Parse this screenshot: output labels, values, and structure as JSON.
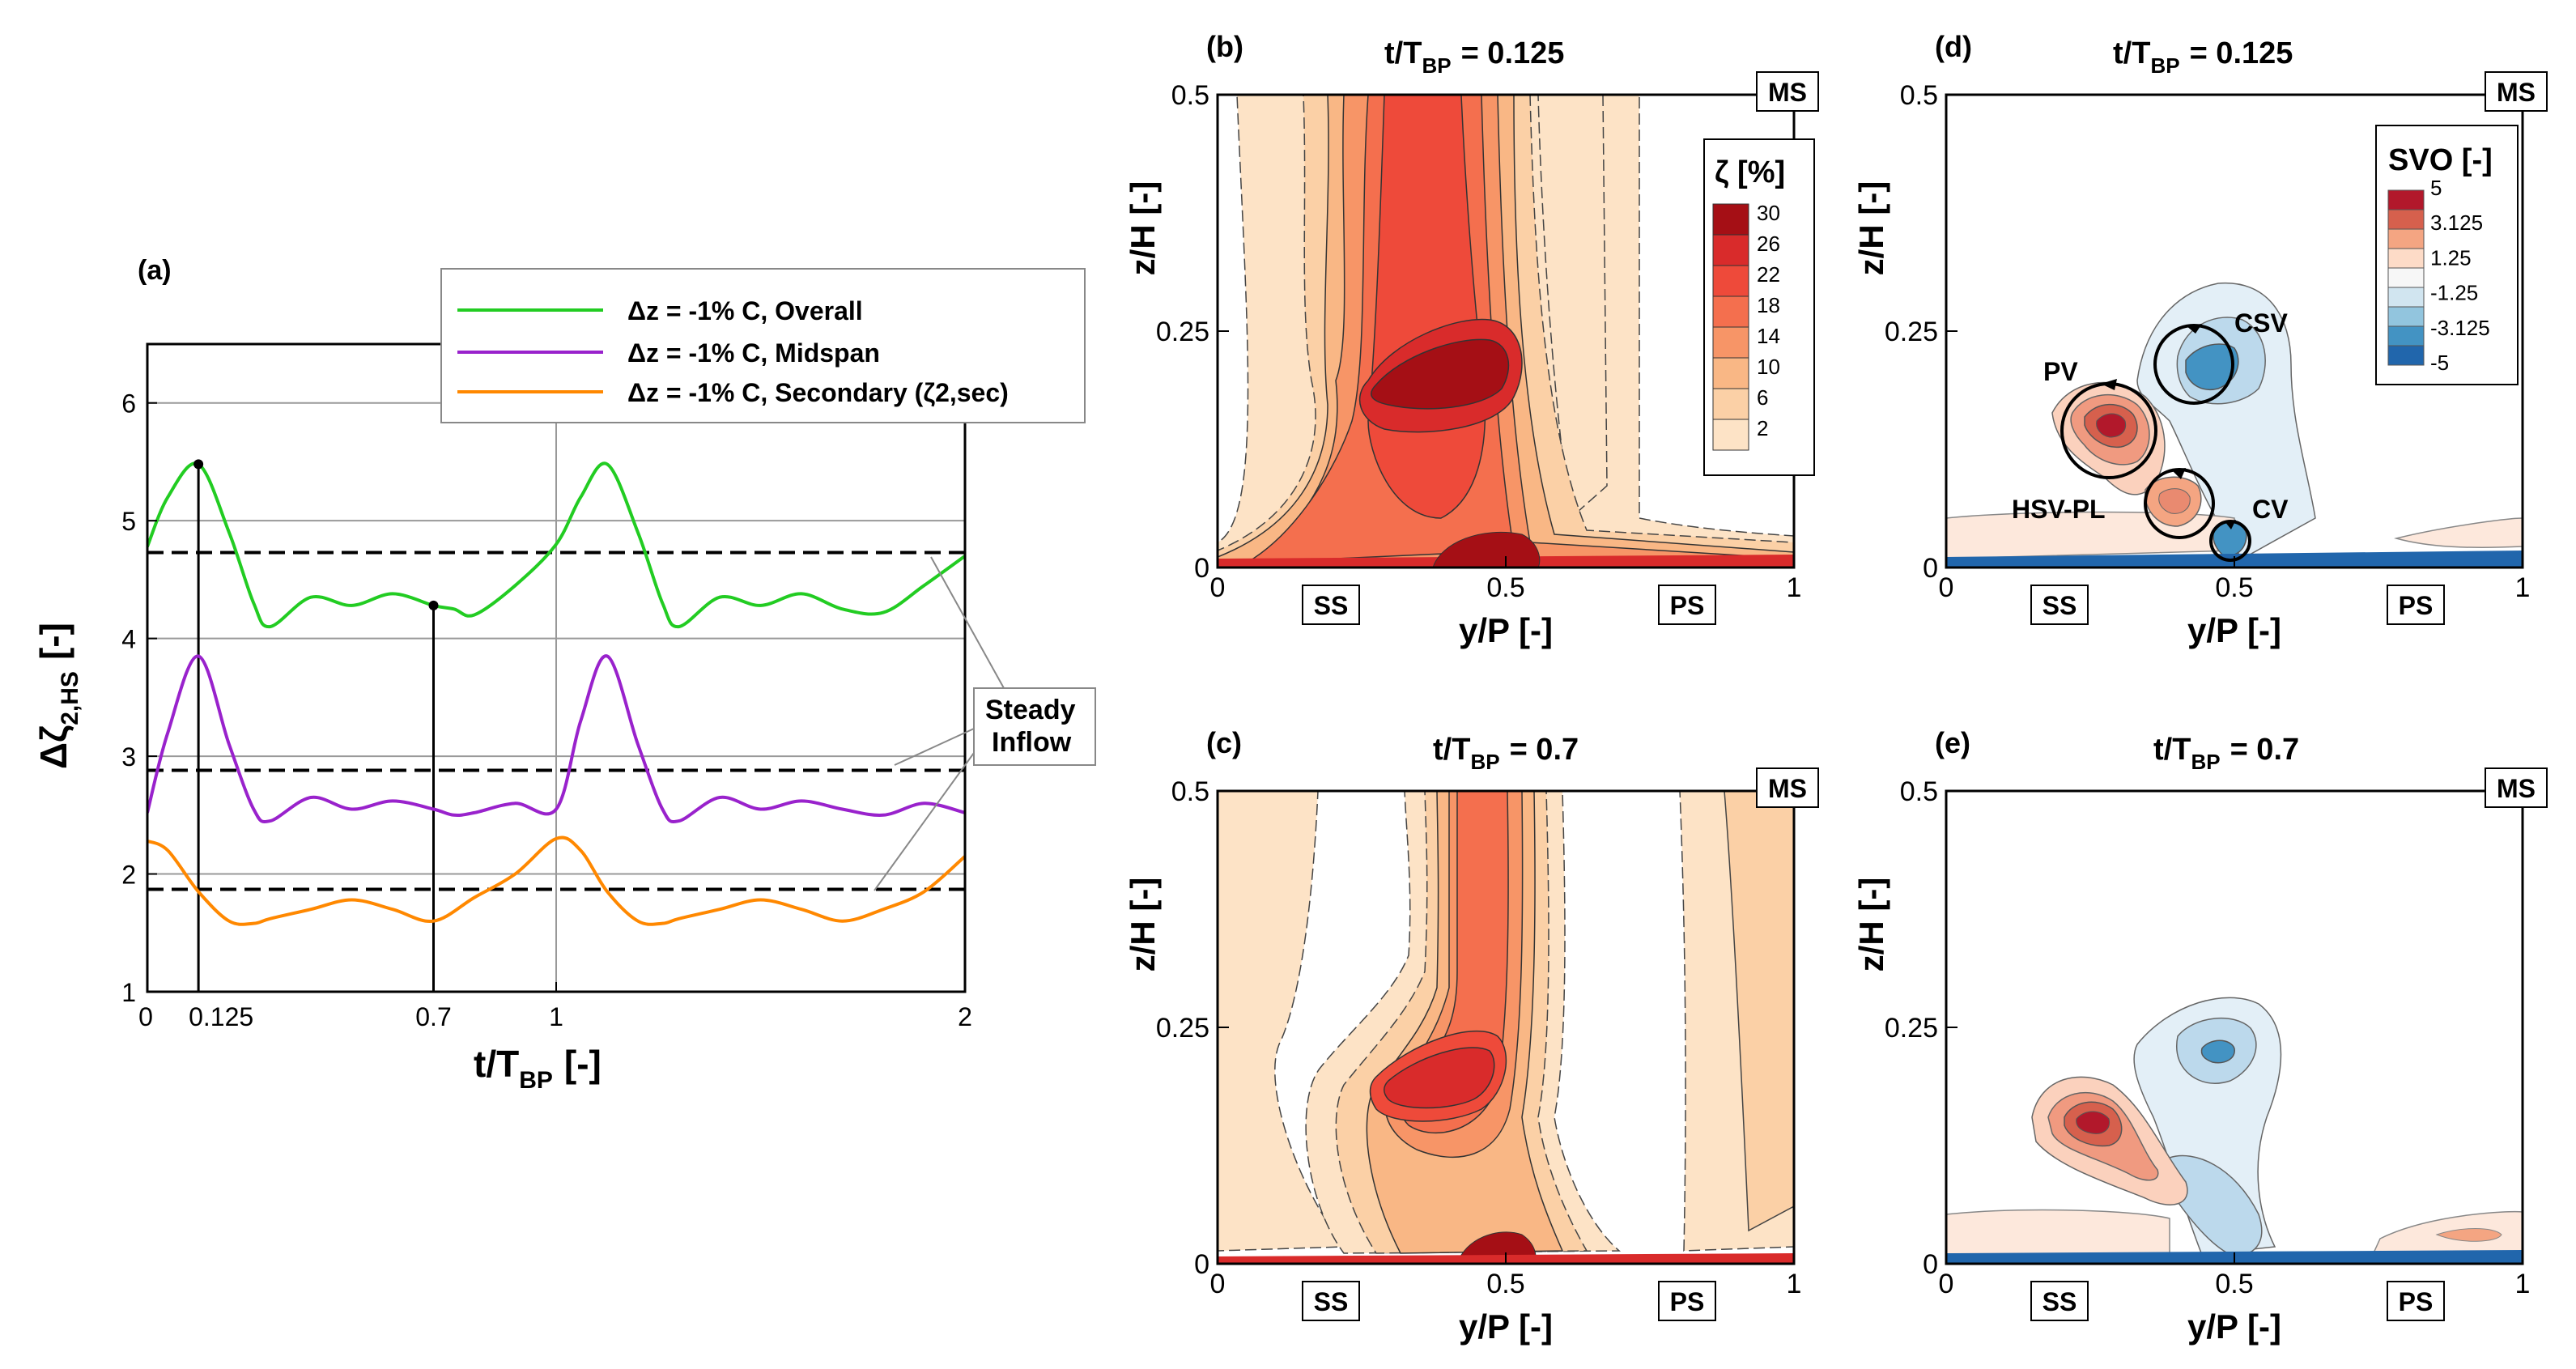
{
  "chart_data": [
    {
      "panel": "(a)",
      "type": "line",
      "xlabel": "t/T",
      "xlabel_sub": "BP",
      "xlabel_unit": "[-]",
      "ylabel": "Δζ",
      "ylabel_sub": "2,HS",
      "ylabel_unit": "[-]",
      "xlim": [
        0,
        2
      ],
      "ylim": [
        1,
        6.5
      ],
      "xticks": [
        0,
        0.125,
        0.7,
        1,
        2
      ],
      "xtick_labels": [
        "0",
        "0.125",
        "0.7",
        "1",
        "2"
      ],
      "yticks": [
        1,
        2,
        3,
        4,
        5,
        6
      ],
      "ytick_labels": [
        "1",
        "2",
        "3",
        "4",
        "5",
        "6"
      ],
      "gridlines_y": [
        2,
        3,
        4,
        5,
        6
      ],
      "legend_position": "top-right",
      "series": [
        {
          "name": "Δz = -1% C, Overall",
          "color": "#22cc22",
          "x": [
            0,
            0.05,
            0.125,
            0.2,
            0.26,
            0.3,
            0.4,
            0.5,
            0.6,
            0.7,
            0.75,
            0.8,
            0.9,
            1.0,
            1.06,
            1.125,
            1.2,
            1.26,
            1.3,
            1.4,
            1.5,
            1.6,
            1.7,
            1.8,
            1.9,
            2.0
          ],
          "y": [
            4.78,
            5.2,
            5.48,
            4.9,
            4.3,
            4.1,
            4.35,
            4.28,
            4.38,
            4.28,
            4.25,
            4.2,
            4.45,
            4.8,
            5.2,
            5.48,
            4.9,
            4.3,
            4.1,
            4.35,
            4.28,
            4.38,
            4.25,
            4.22,
            4.45,
            4.7
          ]
        },
        {
          "name": "Δz = -1% C, Midspan",
          "color": "#9922cc",
          "x": [
            0,
            0.05,
            0.125,
            0.2,
            0.26,
            0.3,
            0.4,
            0.5,
            0.6,
            0.7,
            0.75,
            0.8,
            0.9,
            1.0,
            1.06,
            1.125,
            1.2,
            1.26,
            1.3,
            1.4,
            1.5,
            1.6,
            1.7,
            1.8,
            1.9,
            2.0
          ],
          "y": [
            2.52,
            3.2,
            3.85,
            3.1,
            2.55,
            2.45,
            2.65,
            2.55,
            2.62,
            2.55,
            2.5,
            2.52,
            2.6,
            2.55,
            3.3,
            3.85,
            3.1,
            2.55,
            2.45,
            2.65,
            2.55,
            2.62,
            2.55,
            2.5,
            2.6,
            2.52
          ]
        },
        {
          "name": "Δz = -1% C, Secondary (ζ2,sec)",
          "color": "#ff8800",
          "x": [
            0,
            0.05,
            0.125,
            0.2,
            0.26,
            0.3,
            0.4,
            0.5,
            0.6,
            0.7,
            0.8,
            0.9,
            1.0,
            1.06,
            1.125,
            1.2,
            1.26,
            1.3,
            1.4,
            1.5,
            1.6,
            1.7,
            1.8,
            1.9,
            2.0
          ],
          "y": [
            2.28,
            2.2,
            1.85,
            1.6,
            1.58,
            1.62,
            1.7,
            1.78,
            1.7,
            1.6,
            1.8,
            2.0,
            2.3,
            2.2,
            1.85,
            1.6,
            1.58,
            1.62,
            1.7,
            1.78,
            1.7,
            1.6,
            1.7,
            1.85,
            2.15
          ]
        }
      ],
      "steady_inflow": {
        "label_line1": "Steady",
        "label_line2": "Inflow",
        "values": [
          4.73,
          2.88,
          1.87
        ]
      },
      "markers": [
        {
          "x": 0.125,
          "y": 5.48
        },
        {
          "x": 0.7,
          "y": 4.28
        }
      ]
    },
    {
      "panel": "(b)",
      "type": "heatmap",
      "variable": "ζ [%]",
      "title": "t/T",
      "title_sub": "BP",
      "title_value": "= 0.125",
      "xlabel": "y/P [-]",
      "ylabel": "z/H [-]",
      "xlim": [
        0,
        1
      ],
      "ylim": [
        0,
        0.5
      ],
      "xtick_labels": [
        "0",
        "0.5",
        "1"
      ],
      "ytick_labels": [
        "0",
        "0.25",
        "0.5"
      ],
      "boxed_labels": [
        "MS",
        "SS",
        "PS"
      ],
      "legend_title": "ζ [%]",
      "legend_levels": [
        "30",
        "26",
        "22",
        "18",
        "14",
        "10",
        "6",
        "2"
      ],
      "legend_colors": [
        "#a50f15",
        "#d92b2b",
        "#ee4a3a",
        "#f46f4e",
        "#f79567",
        "#f9b785",
        "#fbd0a6",
        "#fde3c6"
      ]
    },
    {
      "panel": "(c)",
      "type": "heatmap",
      "variable": "ζ [%]",
      "title": "t/T",
      "title_sub": "BP",
      "title_value": "= 0.7",
      "xlabel": "y/P [-]",
      "ylabel": "z/H [-]",
      "xlim": [
        0,
        1
      ],
      "ylim": [
        0,
        0.5
      ],
      "xtick_labels": [
        "0",
        "0.5",
        "1"
      ],
      "ytick_labels": [
        "0",
        "0.25",
        "0.5"
      ],
      "boxed_labels": [
        "MS",
        "SS",
        "PS"
      ]
    },
    {
      "panel": "(d)",
      "type": "heatmap",
      "variable": "SVO [-]",
      "title": "t/T",
      "title_sub": "BP",
      "title_value": "= 0.125",
      "xlabel": "y/P [-]",
      "ylabel": "z/H [-]",
      "xlim": [
        0,
        1
      ],
      "ylim": [
        0,
        0.5
      ],
      "xtick_labels": [
        "0",
        "0.5",
        "1"
      ],
      "ytick_labels": [
        "0",
        "0.25",
        "0.5"
      ],
      "boxed_labels": [
        "MS",
        "SS",
        "PS"
      ],
      "vortex_labels": [
        "CSV",
        "PV",
        "HSV-PL",
        "CV"
      ],
      "legend_title": "SVO [-]",
      "legend_levels": [
        "5",
        "3.125",
        "1.25",
        "-1.25",
        "-3.125",
        "-5"
      ],
      "legend_colors": [
        "#b2182b",
        "#d6604d",
        "#f4a582",
        "#fddbc7",
        "#f7f7f7",
        "#d1e5f0",
        "#92c5de",
        "#4393c3",
        "#2166ac"
      ]
    },
    {
      "panel": "(e)",
      "type": "heatmap",
      "variable": "SVO [-]",
      "title": "t/T",
      "title_sub": "BP",
      "title_value": "= 0.7",
      "xlabel": "y/P [-]",
      "ylabel": "z/H [-]",
      "xlim": [
        0,
        1
      ],
      "ylim": [
        0,
        0.5
      ],
      "xtick_labels": [
        "0",
        "0.5",
        "1"
      ],
      "ytick_labels": [
        "0",
        "0.25",
        "0.5"
      ],
      "boxed_labels": [
        "MS",
        "SS",
        "PS"
      ]
    }
  ]
}
